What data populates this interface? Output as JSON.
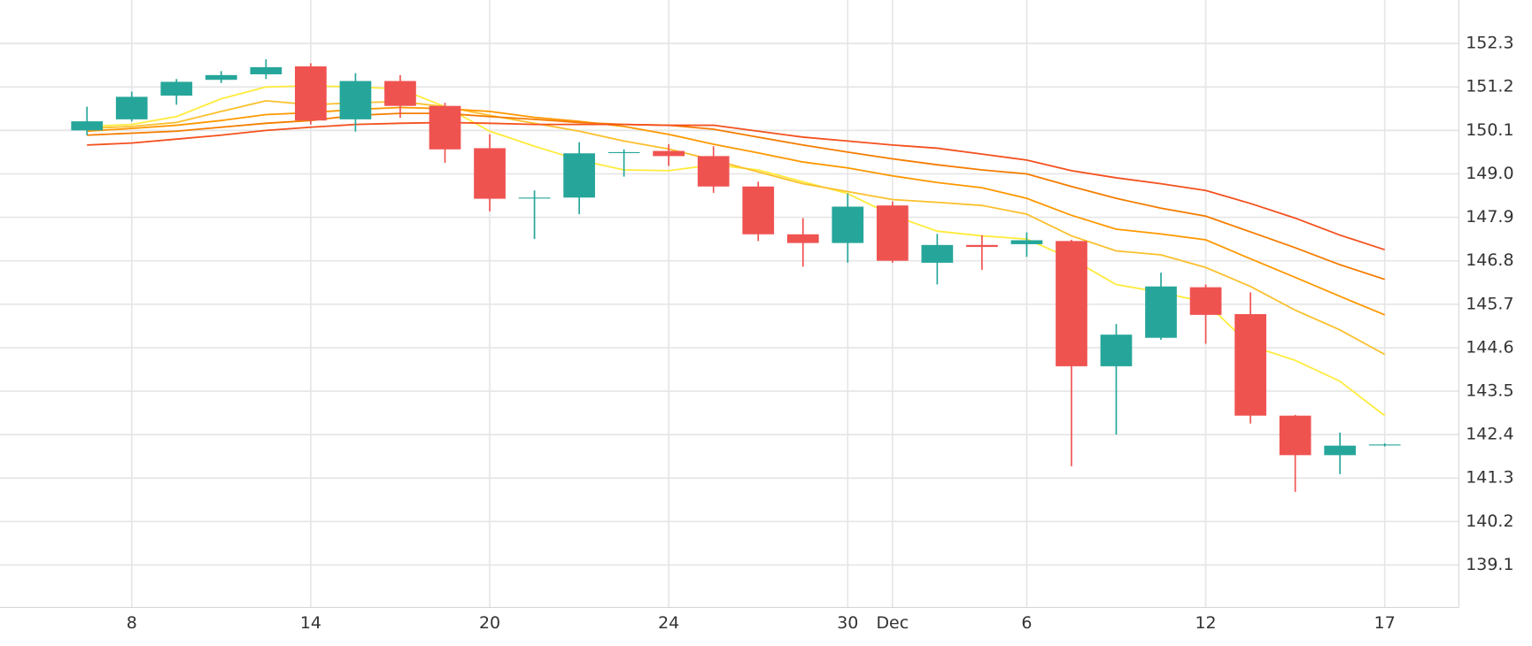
{
  "chart_data": {
    "type": "candlestick",
    "categories": [
      null,
      "8",
      null,
      null,
      null,
      "14",
      null,
      null,
      null,
      "20",
      null,
      null,
      null,
      "24",
      null,
      null,
      null,
      "30",
      "Dec",
      null,
      null,
      "6",
      null,
      null,
      null,
      "12",
      null,
      null,
      null,
      "17"
    ],
    "open": [
      150.1,
      150.38,
      150.98,
      151.38,
      151.52,
      151.72,
      150.38,
      151.35,
      150.72,
      149.65,
      148.4,
      148.4,
      149.55,
      149.58,
      149.45,
      148.68,
      147.47,
      147.25,
      148.2,
      146.75,
      147.2,
      147.22,
      147.3,
      144.13,
      144.85,
      146.13,
      145.45,
      142.88,
      141.88,
      142.15
    ],
    "high": [
      150.7,
      151.08,
      151.4,
      151.6,
      151.9,
      151.8,
      151.55,
      151.5,
      150.8,
      150.0,
      148.58,
      149.8,
      149.62,
      149.75,
      149.7,
      148.8,
      147.88,
      148.5,
      148.3,
      147.48,
      147.45,
      147.52,
      147.33,
      145.2,
      146.5,
      146.2,
      146.0,
      142.9,
      142.45,
      142.18
    ],
    "low": [
      149.98,
      150.33,
      150.75,
      151.3,
      151.4,
      150.25,
      150.07,
      150.42,
      149.28,
      148.05,
      147.35,
      147.98,
      148.93,
      149.2,
      148.52,
      147.3,
      146.65,
      146.75,
      146.75,
      146.2,
      146.57,
      146.9,
      141.6,
      142.4,
      144.8,
      144.7,
      142.68,
      140.95,
      141.4,
      142.1
    ],
    "close": [
      150.33,
      150.95,
      151.33,
      151.5,
      151.7,
      150.35,
      151.35,
      150.72,
      149.62,
      148.37,
      148.4,
      149.52,
      149.55,
      149.45,
      148.68,
      147.47,
      147.25,
      148.17,
      146.8,
      147.2,
      147.15,
      147.32,
      144.13,
      144.93,
      146.15,
      145.43,
      142.88,
      141.88,
      142.12,
      142.15
    ],
    "up_color": "#26a69a",
    "down_color": "#ef5350",
    "series": [
      {
        "color": "#ffeb3b",
        "values": [
          150.2,
          150.25,
          150.45,
          150.9,
          151.2,
          151.23,
          151.2,
          151.15,
          150.7,
          150.08,
          149.7,
          149.35,
          149.1,
          149.08,
          149.23,
          149.1,
          148.8,
          148.5,
          147.95,
          147.55,
          147.43,
          147.35,
          146.85,
          146.2,
          146.0,
          145.75,
          144.65,
          144.28,
          143.75,
          142.88
        ]
      },
      {
        "color": "#fbc02d",
        "values": [
          150.15,
          150.2,
          150.3,
          150.58,
          150.85,
          150.75,
          150.8,
          150.83,
          150.7,
          150.48,
          150.28,
          150.08,
          149.83,
          149.63,
          149.35,
          149.05,
          148.75,
          148.55,
          148.35,
          148.28,
          148.2,
          147.98,
          147.43,
          147.05,
          146.95,
          146.63,
          146.15,
          145.55,
          145.05,
          144.43
        ]
      },
      {
        "color": "#ff9800",
        "values": [
          150.08,
          150.15,
          150.23,
          150.35,
          150.5,
          150.55,
          150.63,
          150.68,
          150.65,
          150.58,
          150.43,
          150.33,
          150.2,
          150.0,
          149.75,
          149.53,
          149.3,
          149.15,
          148.95,
          148.78,
          148.65,
          148.38,
          147.95,
          147.6,
          147.48,
          147.33,
          146.85,
          146.38,
          145.9,
          145.43
        ]
      },
      {
        "color": "#f57c00",
        "values": [
          149.98,
          150.03,
          150.08,
          150.18,
          150.28,
          150.35,
          150.48,
          150.53,
          150.53,
          150.45,
          150.38,
          150.3,
          150.25,
          150.23,
          150.13,
          149.93,
          149.73,
          149.55,
          149.38,
          149.23,
          149.1,
          149.0,
          148.68,
          148.38,
          148.13,
          147.93,
          147.53,
          147.13,
          146.7,
          146.33
        ]
      },
      {
        "color": "#f4511e",
        "values": [
          149.73,
          149.78,
          149.88,
          149.98,
          150.1,
          150.18,
          150.25,
          150.28,
          150.3,
          150.28,
          150.25,
          150.25,
          150.25,
          150.23,
          150.23,
          150.08,
          149.93,
          149.83,
          149.73,
          149.65,
          149.5,
          149.35,
          149.08,
          148.9,
          148.75,
          148.58,
          148.25,
          147.88,
          147.45,
          147.08
        ]
      }
    ],
    "ylim": [
      138.025,
      153.4
    ],
    "yticks": [
      152.3,
      151.2,
      150.1,
      {
        "value": 149,
        "label": "149.0"
      },
      147.9,
      146.8,
      145.7,
      144.6,
      143.5,
      142.4,
      141.3,
      140.2,
      139.1
    ],
    "grid": true
  }
}
